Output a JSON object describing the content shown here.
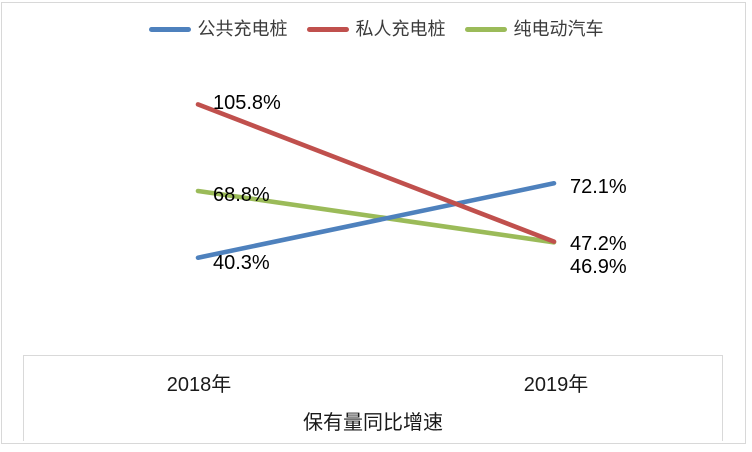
{
  "chart_data": {
    "type": "line",
    "categories": [
      "2018年",
      "2019年"
    ],
    "series": [
      {
        "name": "公共充电桩",
        "color": "#4E81BD",
        "values": [
          40.3,
          72.1
        ],
        "point_labels": [
          "40.3%",
          "72.1%"
        ]
      },
      {
        "name": "私人充电桩",
        "color": "#C0504D",
        "values": [
          105.8,
          47.2
        ],
        "point_labels": [
          "105.8%",
          "47.2%"
        ]
      },
      {
        "name": "纯电动汽车",
        "color": "#9BBB59",
        "values": [
          68.8,
          46.9
        ],
        "point_labels": [
          "68.8%",
          "46.9%"
        ]
      }
    ],
    "xlabel": "保有量同比增速",
    "ylim": [
      0,
      120
    ],
    "grid": false,
    "legend_position": "top",
    "axis_line_color": "#D9D9D9",
    "frame_border_color": "#D8D8D8",
    "data_label_color": "#000000",
    "legend_text_color": "#3B3B3B"
  }
}
